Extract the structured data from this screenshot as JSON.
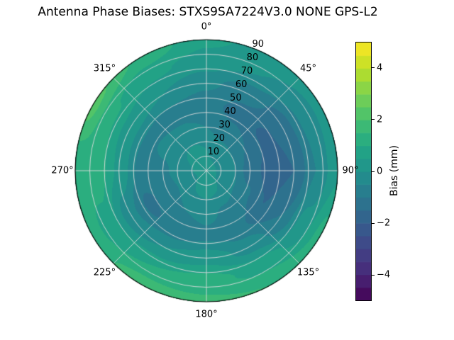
{
  "chart_data": {
    "type": "heatmap",
    "projection": "polar",
    "title": "Antenna Phase Biases: STXS9SA7224V3.0 NONE GPS-L2",
    "theta_tick_labels": [
      "0°",
      "45°",
      "90°",
      "135°",
      "180°",
      "225°",
      "270°",
      "315°"
    ],
    "theta_tick_angles_deg": [
      0,
      45,
      90,
      135,
      180,
      225,
      270,
      315
    ],
    "r_tick_labels": [
      "10",
      "20",
      "30",
      "40",
      "50",
      "60",
      "70",
      "80",
      "90"
    ],
    "r_ticks": [
      10,
      20,
      30,
      40,
      50,
      60,
      70,
      80,
      90
    ],
    "r_max": 90,
    "r_label_angle_deg": 22.5,
    "colorbar": {
      "label": "Bias (mm)",
      "tick_labels": [
        "−4",
        "−2",
        "0",
        "2",
        "4"
      ],
      "tick_values": [
        -4,
        -2,
        0,
        2,
        4
      ],
      "vmin": -5,
      "vmax": 5,
      "level_step": 0.5,
      "colormap": "viridis"
    },
    "colors": {
      "viridis_stops": [
        "#440154",
        "#482878",
        "#414487",
        "#355f8d",
        "#2a788e",
        "#21918c",
        "#22a884",
        "#44bf70",
        "#7ad151",
        "#bddf26",
        "#fde725"
      ],
      "grid_line": "#dcdcdc",
      "outline": "#000000",
      "background": "#ffffff"
    },
    "grid": {
      "azimuth_deg": [
        0,
        30,
        60,
        90,
        120,
        150,
        180,
        210,
        240,
        270,
        300,
        330
      ],
      "radius": [
        0,
        15,
        30,
        45,
        60,
        75,
        90
      ],
      "bias_mm": [
        [
          0.2,
          0.0,
          -0.5,
          -0.8,
          -0.4,
          0.3,
          0.6
        ],
        [
          0.2,
          -0.2,
          -0.8,
          -1.2,
          -0.8,
          0.0,
          0.3
        ],
        [
          0.2,
          -0.3,
          -1.0,
          -1.6,
          -1.3,
          -0.4,
          0.2
        ],
        [
          0.2,
          -0.3,
          -1.2,
          -1.8,
          -1.5,
          -0.5,
          0.4
        ],
        [
          0.2,
          -0.2,
          -0.9,
          -1.5,
          -1.0,
          0.2,
          1.2
        ],
        [
          0.2,
          0.0,
          -0.6,
          -0.9,
          -0.2,
          0.8,
          1.5
        ],
        [
          0.2,
          0.1,
          -0.4,
          -0.6,
          0.3,
          1.2,
          1.6
        ],
        [
          0.2,
          0.0,
          -0.5,
          -0.9,
          0.0,
          1.0,
          1.8
        ],
        [
          0.2,
          -0.2,
          -0.8,
          -1.1,
          -0.3,
          0.8,
          1.2
        ],
        [
          0.2,
          -0.1,
          -0.6,
          -0.7,
          0.4,
          1.3,
          1.0
        ],
        [
          0.2,
          0.0,
          -0.4,
          -0.6,
          0.3,
          1.1,
          2.2
        ],
        [
          0.2,
          0.1,
          -0.4,
          -0.7,
          0.0,
          0.6,
          1.4
        ]
      ]
    }
  }
}
